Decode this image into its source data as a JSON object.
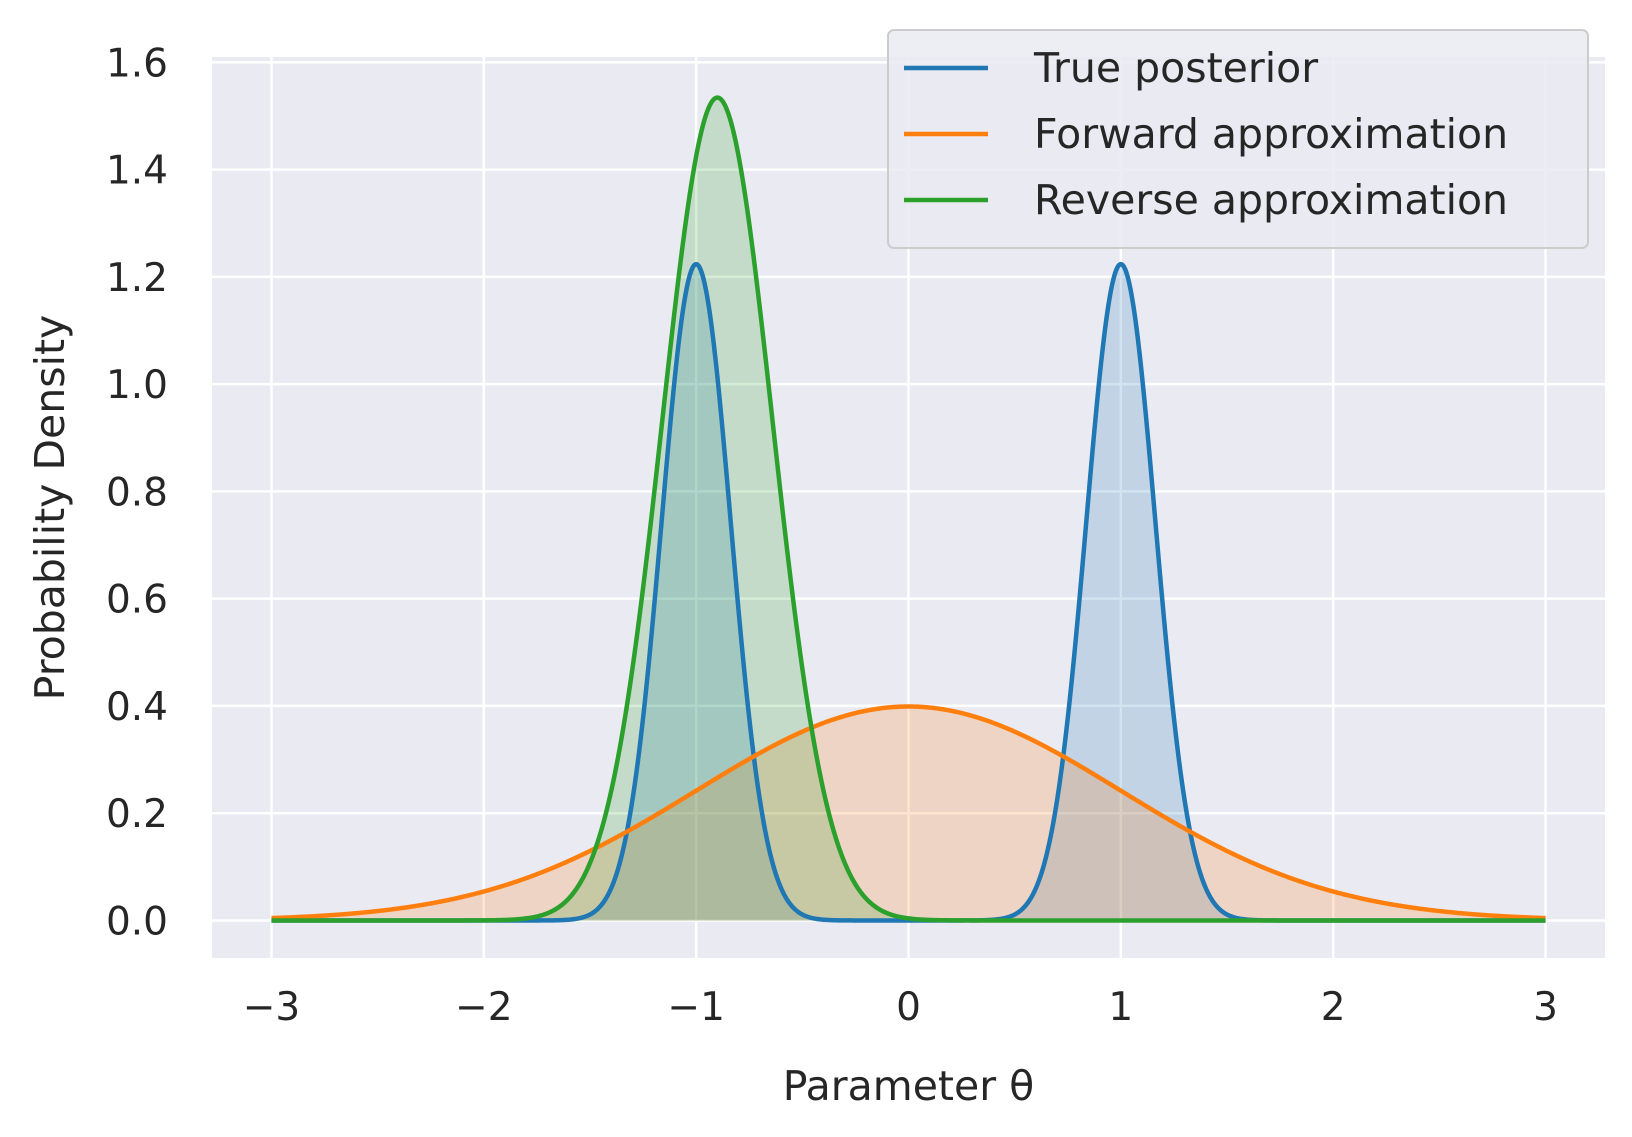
{
  "chart_data": {
    "type": "line",
    "xlabel": "Parameter θ",
    "ylabel": "Probability Density",
    "xlim": [
      -3.28,
      3.28
    ],
    "ylim": [
      -0.07,
      1.61
    ],
    "xticks": [
      -3,
      -2,
      -1,
      0,
      1,
      2,
      3
    ],
    "xtick_labels": [
      "−3",
      "−2",
      "−1",
      "0",
      "1",
      "2",
      "3"
    ],
    "yticks": [
      0.0,
      0.2,
      0.4,
      0.6,
      0.8,
      1.0,
      1.2,
      1.4,
      1.6
    ],
    "ytick_labels": [
      "0.0",
      "0.2",
      "0.4",
      "0.6",
      "0.8",
      "1.0",
      "1.2",
      "1.4",
      "1.6"
    ],
    "grid": true,
    "background": "#eaeaf2",
    "legend_position": "top-right",
    "x_range": [
      -3,
      3
    ],
    "series": [
      {
        "name": "True posterior",
        "color": "#1f77b4",
        "fill": true,
        "distribution": "mixture of two Gaussians",
        "components": [
          {
            "weight": 0.5,
            "mean": -1.0,
            "std": 0.163
          },
          {
            "weight": 0.5,
            "mean": 1.0,
            "std": 0.163
          }
        ],
        "peak_values": [
          [
            -1.0,
            1.225
          ],
          [
            1.0,
            1.225
          ]
        ]
      },
      {
        "name": "Forward approximation",
        "color": "#ff7f0e",
        "fill": true,
        "distribution": "Gaussian",
        "components": [
          {
            "weight": 1.0,
            "mean": 0.0,
            "std": 1.0
          }
        ],
        "peak_values": [
          [
            0.0,
            0.399
          ]
        ]
      },
      {
        "name": "Reverse approximation",
        "color": "#2ca02c",
        "fill": true,
        "distribution": "Gaussian",
        "components": [
          {
            "weight": 1.0,
            "mean": -0.9,
            "std": 0.26
          }
        ],
        "peak_values": [
          [
            -0.9,
            1.534
          ]
        ]
      }
    ]
  }
}
